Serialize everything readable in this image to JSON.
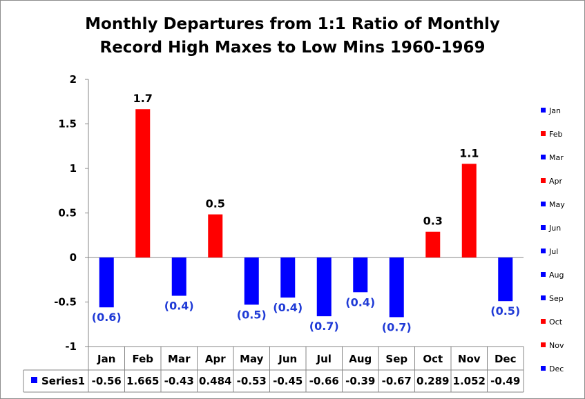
{
  "chart_data": {
    "type": "bar",
    "title_line1": "Monthly Departures from 1:1 Ratio of Monthly",
    "title_line2": "Record High Maxes to Low Mins 1960-1969",
    "categories": [
      "Jan",
      "Feb",
      "Mar",
      "Apr",
      "May",
      "Jun",
      "Jul",
      "Aug",
      "Sep",
      "Oct",
      "Nov",
      "Dec"
    ],
    "series": [
      {
        "name": "Series1",
        "values": [
          -0.56,
          1.665,
          -0.43,
          0.484,
          -0.53,
          -0.45,
          -0.66,
          -0.39,
          -0.67,
          0.289,
          1.052,
          -0.49
        ],
        "table_values": [
          "-0.56",
          "1.665",
          "-0.43",
          "0.484",
          "-0.53",
          "-0.45",
          "-0.66",
          "-0.39",
          "-0.67",
          "0.289",
          "1.052",
          "-0.49"
        ],
        "data_labels": [
          "(0.6)",
          "1.7",
          "(0.4)",
          "0.5",
          "(0.5)",
          "(0.4)",
          "(0.7)",
          "(0.4)",
          "(0.7)",
          "0.3",
          "1.1",
          "(0.5)"
        ]
      }
    ],
    "ylim": [
      -1,
      2
    ],
    "y_ticks": [
      2,
      1.5,
      1,
      0.5,
      0,
      -0.5,
      -1
    ],
    "y_tick_labels": [
      "2",
      "1.5",
      "1",
      "0.5",
      "0",
      "-0.5",
      "-1"
    ],
    "positive_color": "#ff0000",
    "negative_color": "#0000ff",
    "negative_label_color": "#1f3ad6",
    "positive_label_color": "#000000",
    "grid": false,
    "data_table": true,
    "legend_position": "right",
    "legend_entries": [
      "Jan",
      "Feb",
      "Mar",
      "Apr",
      "May",
      "Jun",
      "Jul",
      "Aug",
      "Sep",
      "Oct",
      "Nov",
      "Dec"
    ],
    "legend_colors": [
      "#0000ff",
      "#ff0000",
      "#0000ff",
      "#ff0000",
      "#0000ff",
      "#0000ff",
      "#0000ff",
      "#0000ff",
      "#0000ff",
      "#ff0000",
      "#ff0000",
      "#0000ff"
    ]
  }
}
